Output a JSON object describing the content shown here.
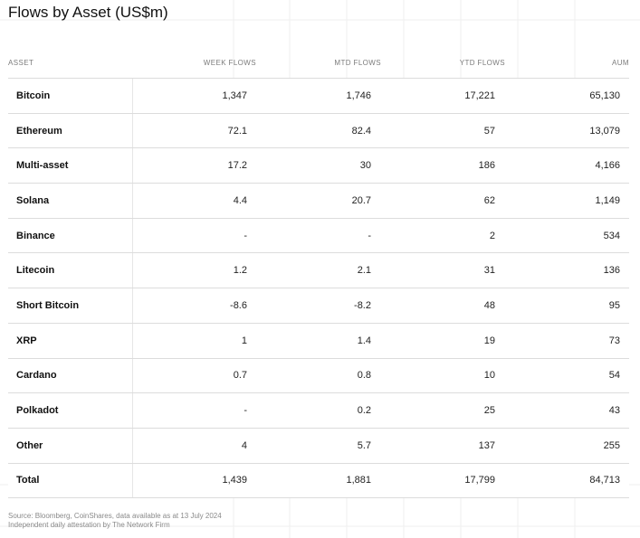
{
  "title": "Flows by Asset (US$m)",
  "columns": [
    "ASSET",
    "WEEK FLOWS",
    "MTD FLOWS",
    "YTD FLOWS",
    "AUM"
  ],
  "rows": [
    {
      "asset": "Bitcoin",
      "week": "1,347",
      "mtd": "1,746",
      "ytd": "17,221",
      "aum": "65,130"
    },
    {
      "asset": "Ethereum",
      "week": "72.1",
      "mtd": "82.4",
      "ytd": "57",
      "aum": "13,079"
    },
    {
      "asset": "Multi-asset",
      "week": "17.2",
      "mtd": "30",
      "ytd": "186",
      "aum": "4,166"
    },
    {
      "asset": "Solana",
      "week": "4.4",
      "mtd": "20.7",
      "ytd": "62",
      "aum": "1,149"
    },
    {
      "asset": "Binance",
      "week": "-",
      "mtd": "-",
      "ytd": "2",
      "aum": "534"
    },
    {
      "asset": "Litecoin",
      "week": "1.2",
      "mtd": "2.1",
      "ytd": "31",
      "aum": "136"
    },
    {
      "asset": "Short Bitcoin",
      "week": "-8.6",
      "mtd": "-8.2",
      "ytd": "48",
      "aum": "95"
    },
    {
      "asset": "XRP",
      "week": "1",
      "mtd": "1.4",
      "ytd": "19",
      "aum": "73"
    },
    {
      "asset": "Cardano",
      "week": "0.7",
      "mtd": "0.8",
      "ytd": "10",
      "aum": "54"
    },
    {
      "asset": "Polkadot",
      "week": "-",
      "mtd": "0.2",
      "ytd": "25",
      "aum": "43"
    },
    {
      "asset": "Other",
      "week": "4",
      "mtd": "5.7",
      "ytd": "137",
      "aum": "255"
    },
    {
      "asset": "Total",
      "week": "1,439",
      "mtd": "1,881",
      "ytd": "17,799",
      "aum": "84,713"
    }
  ],
  "footer": {
    "source": "Source: Bloomberg, CoinShares, data available as at 13 July 2024",
    "attestation": "Independent daily attestation by The Network Firm"
  },
  "chart_data": {
    "type": "table",
    "title": "Flows by Asset (US$m)",
    "columns": [
      "ASSET",
      "WEEK FLOWS",
      "MTD FLOWS",
      "YTD FLOWS",
      "AUM"
    ],
    "rows": [
      [
        "Bitcoin",
        1347,
        1746,
        17221,
        65130
      ],
      [
        "Ethereum",
        72.1,
        82.4,
        57,
        13079
      ],
      [
        "Multi-asset",
        17.2,
        30,
        186,
        4166
      ],
      [
        "Solana",
        4.4,
        20.7,
        62,
        1149
      ],
      [
        "Binance",
        null,
        null,
        2,
        534
      ],
      [
        "Litecoin",
        1.2,
        2.1,
        31,
        136
      ],
      [
        "Short Bitcoin",
        -8.6,
        -8.2,
        48,
        95
      ],
      [
        "XRP",
        1,
        1.4,
        19,
        73
      ],
      [
        "Cardano",
        0.7,
        0.8,
        10,
        54
      ],
      [
        "Polkadot",
        null,
        0.2,
        25,
        43
      ],
      [
        "Other",
        4,
        5.7,
        137,
        255
      ],
      [
        "Total",
        1439,
        1881,
        17799,
        84713
      ]
    ]
  }
}
